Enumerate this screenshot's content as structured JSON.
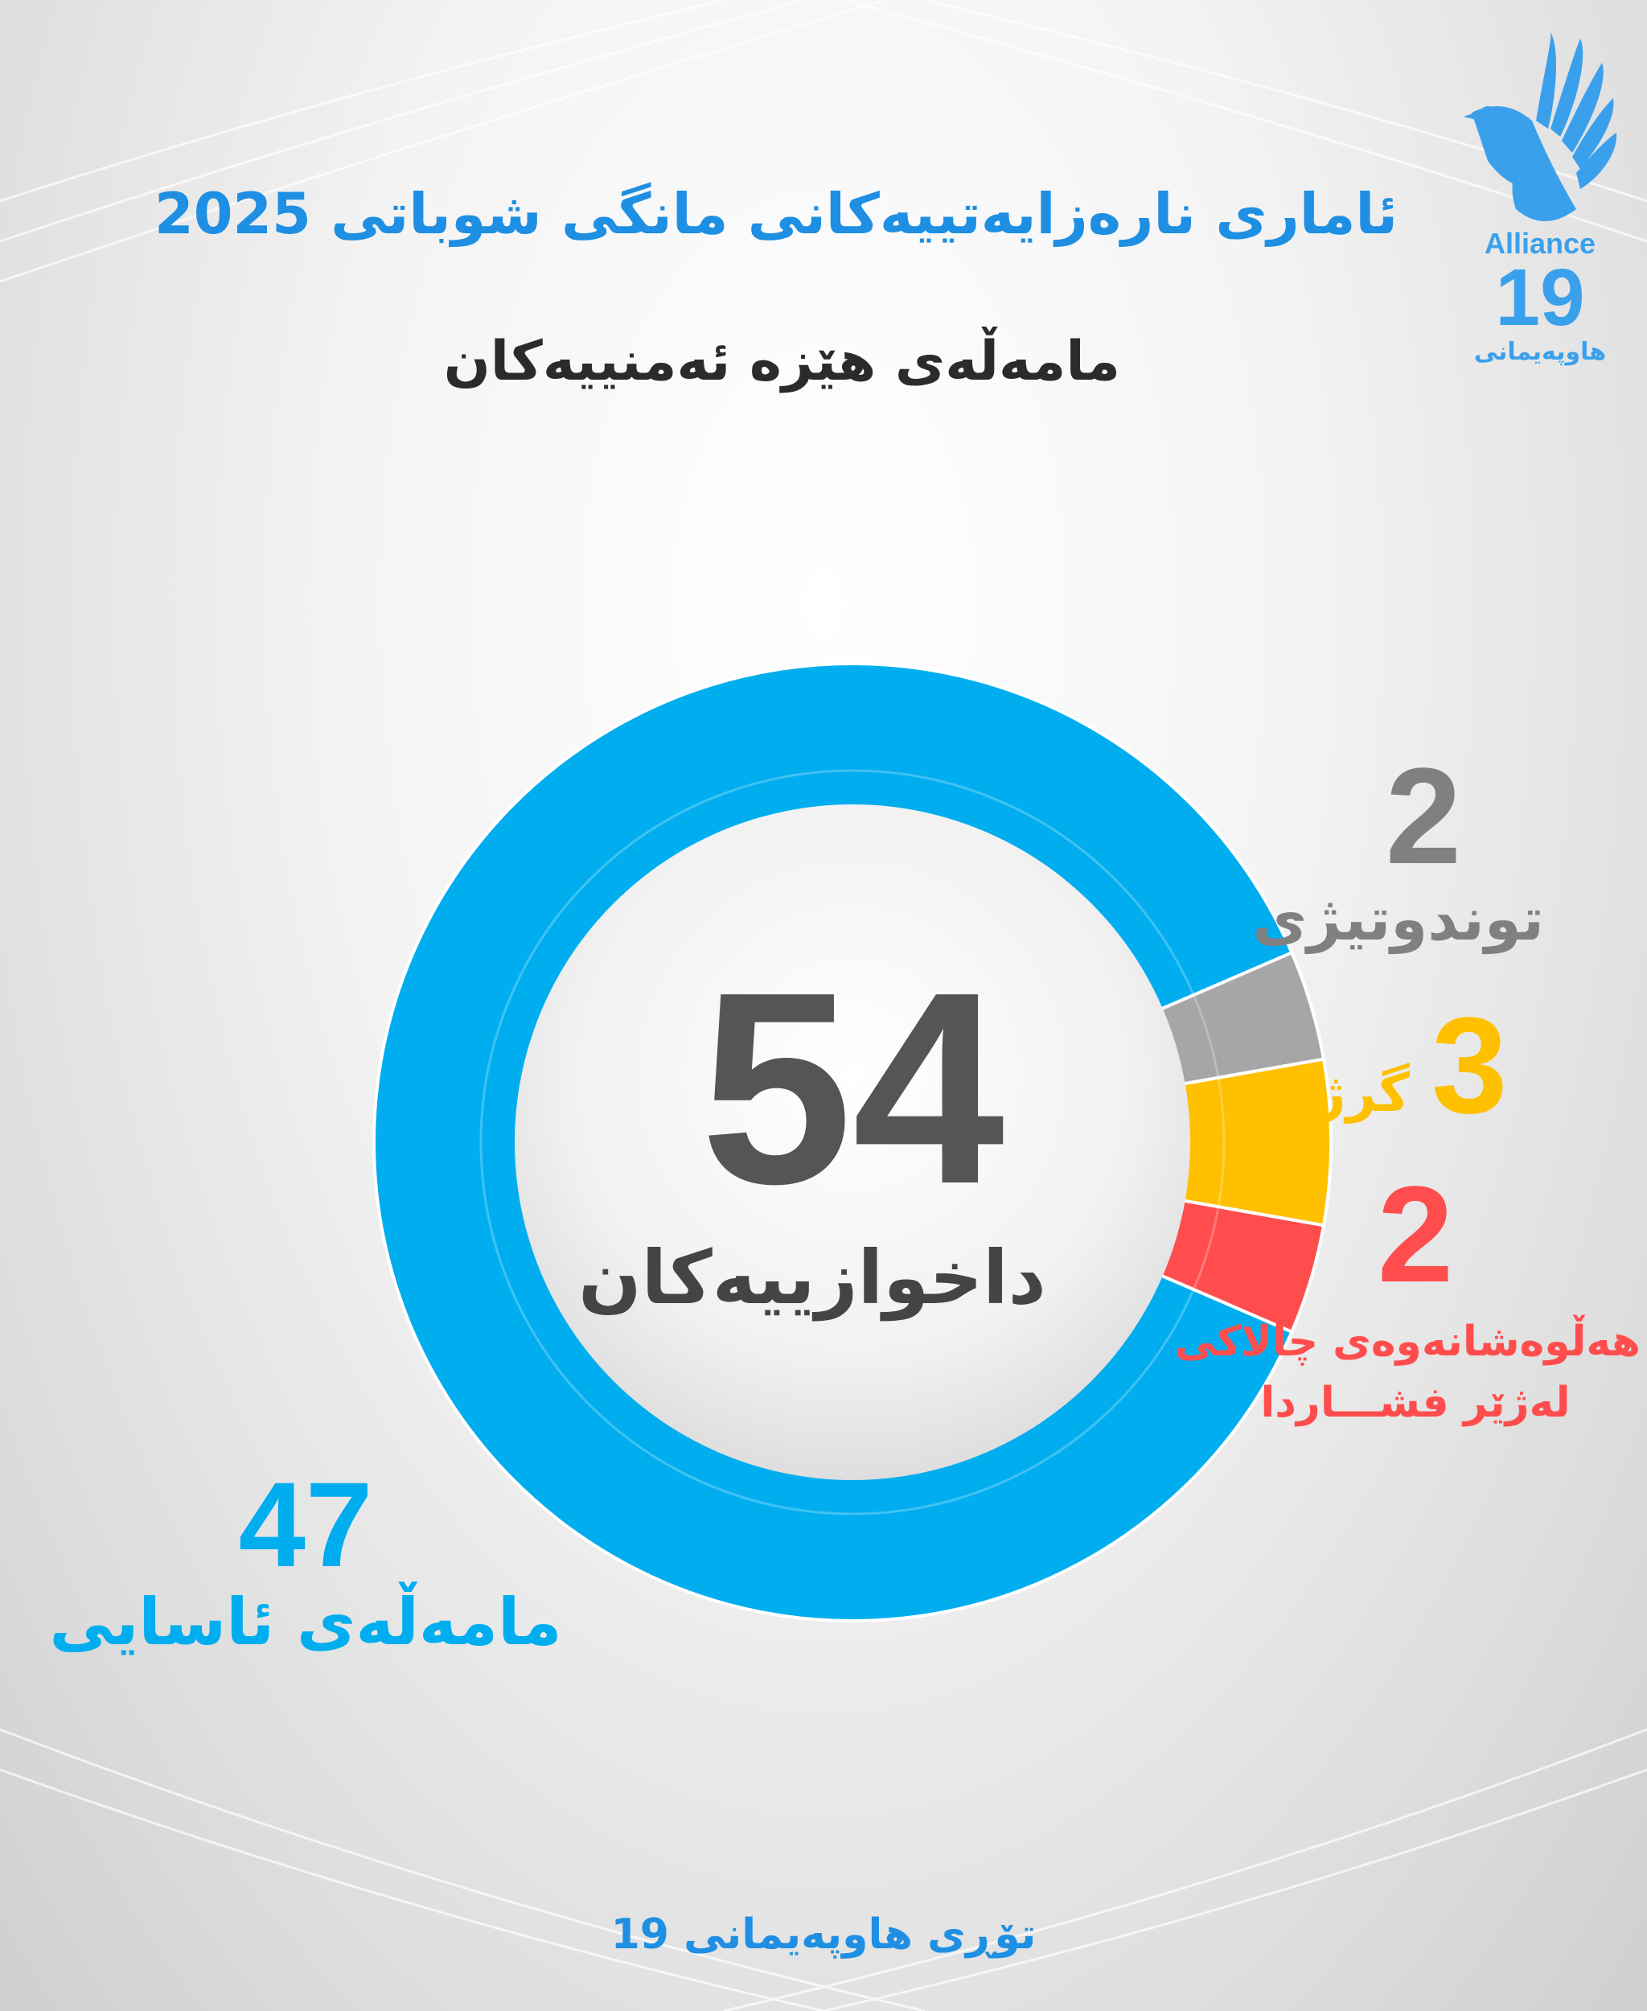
{
  "header": {
    "title": "ئاماری نارەزایەتییەکانی مانگی شوباتی 2025",
    "subtitle": "مامەڵەی هێزە ئەمنییەکان"
  },
  "logo": {
    "name": "Alliance",
    "number": "19",
    "native_name": "هاوپەیمانی",
    "color": "#3aa0ec"
  },
  "footer": {
    "text": "تۆڕی هاوپەیمانی 19"
  },
  "chart_data": {
    "type": "pie",
    "style": "donut",
    "total": {
      "value": "54",
      "label": "داخوازییەکان"
    },
    "slices": [
      {
        "value": 47,
        "value_text": "47",
        "label": "مامەڵەی ئاسایی",
        "color": "#00aeef"
      },
      {
        "value": 2,
        "value_text": "2",
        "label": "توندوتیژی",
        "color": "#a6a6a6",
        "value_color": "#808080",
        "label_color": "#808080"
      },
      {
        "value": 3,
        "value_text": "3",
        "label": "گرژی",
        "color": "#ffc000"
      },
      {
        "value": 2,
        "value_text": "2",
        "label_lines": [
          "هەڵوەشانەوەی چالاکی",
          "لەژێر فشـــاردا"
        ],
        "color": "#ff4d4d"
      }
    ]
  }
}
